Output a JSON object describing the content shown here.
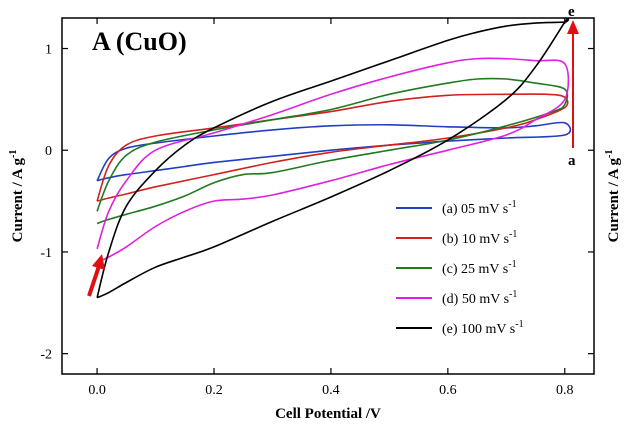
{
  "chart_data": {
    "type": "line",
    "title": "A (CuO)",
    "xlabel": "Cell Potential /V",
    "ylabel": "Current / A g",
    "ylabel_sup": "-1",
    "right_ylabel": "Current / A g",
    "right_ylabel_sup": "-1",
    "xlim": [
      -0.06,
      0.85
    ],
    "ylim": [
      -2.2,
      1.3
    ],
    "x_ticks": [
      0.0,
      0.2,
      0.4,
      0.6,
      0.8
    ],
    "x_tick_labels": [
      "0.0",
      "0.2",
      "0.4",
      "0.6",
      "0.8"
    ],
    "y_ticks": [
      -2,
      -1,
      0,
      1
    ],
    "y_tick_labels": [
      "-2",
      "-1",
      "0",
      "1"
    ],
    "grid": false,
    "legend_position": "lower-right",
    "annotations": {
      "top_label": "e",
      "bottom_label": "a"
    },
    "series": [
      {
        "name": "(a) 05 mV s",
        "name_sup": "-1",
        "color": "#1f3fbf",
        "x": [
          0.0,
          0.02,
          0.05,
          0.1,
          0.15,
          0.2,
          0.3,
          0.4,
          0.5,
          0.55,
          0.6,
          0.7,
          0.8,
          0.8,
          0.75,
          0.7,
          0.6,
          0.5,
          0.4,
          0.3,
          0.2,
          0.1,
          0.05,
          0.02,
          0.0
        ],
        "y": [
          -0.3,
          -0.27,
          -0.24,
          -0.2,
          -0.16,
          -0.12,
          -0.06,
          0.0,
          0.05,
          0.07,
          0.09,
          0.12,
          0.15,
          0.27,
          0.24,
          0.22,
          0.23,
          0.25,
          0.24,
          0.2,
          0.14,
          0.07,
          0.02,
          -0.08,
          -0.3
        ]
      },
      {
        "name": "(b) 10 mV s",
        "name_sup": "-1",
        "color": "#d42020",
        "x": [
          0.0,
          0.02,
          0.05,
          0.1,
          0.2,
          0.3,
          0.4,
          0.5,
          0.6,
          0.7,
          0.75,
          0.8,
          0.8,
          0.77,
          0.7,
          0.6,
          0.5,
          0.4,
          0.3,
          0.2,
          0.1,
          0.05,
          0.02,
          0.0
        ],
        "y": [
          -0.5,
          -0.47,
          -0.43,
          -0.36,
          -0.24,
          -0.12,
          -0.02,
          0.05,
          0.12,
          0.22,
          0.3,
          0.42,
          0.52,
          0.55,
          0.55,
          0.54,
          0.48,
          0.38,
          0.3,
          0.22,
          0.14,
          0.05,
          -0.15,
          -0.5
        ]
      },
      {
        "name": "(c) 25 mV s",
        "name_sup": "-1",
        "color": "#207a20",
        "x": [
          0.0,
          0.02,
          0.05,
          0.1,
          0.15,
          0.2,
          0.25,
          0.3,
          0.4,
          0.5,
          0.6,
          0.7,
          0.78,
          0.8,
          0.8,
          0.75,
          0.7,
          0.65,
          0.6,
          0.5,
          0.4,
          0.3,
          0.2,
          0.1,
          0.05,
          0.02,
          0.0
        ],
        "y": [
          -0.72,
          -0.68,
          -0.63,
          -0.55,
          -0.45,
          -0.32,
          -0.24,
          -0.22,
          -0.1,
          0.0,
          0.1,
          0.24,
          0.38,
          0.45,
          0.6,
          0.66,
          0.7,
          0.7,
          0.66,
          0.55,
          0.4,
          0.3,
          0.2,
          0.08,
          -0.05,
          -0.3,
          -0.6
        ]
      },
      {
        "name": "(d) 50 mV s",
        "name_sup": "-1",
        "color": "#e020e0",
        "x": [
          0.0,
          0.02,
          0.05,
          0.1,
          0.15,
          0.2,
          0.25,
          0.3,
          0.4,
          0.5,
          0.6,
          0.7,
          0.75,
          0.8,
          0.8,
          0.75,
          0.7,
          0.65,
          0.6,
          0.5,
          0.4,
          0.3,
          0.2,
          0.1,
          0.05,
          0.02,
          0.0
        ],
        "y": [
          -1.1,
          -1.05,
          -0.95,
          -0.75,
          -0.6,
          -0.5,
          -0.48,
          -0.44,
          -0.3,
          -0.14,
          0.0,
          0.15,
          0.3,
          0.5,
          0.85,
          0.88,
          0.9,
          0.9,
          0.86,
          0.72,
          0.55,
          0.35,
          0.17,
          0.0,
          -0.3,
          -0.6,
          -0.97
        ]
      },
      {
        "name": "(e) 100 mV s",
        "name_sup": "-1",
        "color": "#000000",
        "x": [
          0.0,
          0.02,
          0.05,
          0.1,
          0.15,
          0.2,
          0.3,
          0.4,
          0.5,
          0.6,
          0.7,
          0.75,
          0.8,
          0.8,
          0.75,
          0.7,
          0.65,
          0.6,
          0.5,
          0.4,
          0.3,
          0.2,
          0.15,
          0.1,
          0.05,
          0.02,
          0.0
        ],
        "y": [
          -1.45,
          -1.4,
          -1.3,
          -1.15,
          -1.05,
          -0.95,
          -0.7,
          -0.46,
          -0.2,
          0.1,
          0.5,
          0.82,
          1.26,
          1.26,
          1.25,
          1.22,
          1.16,
          1.08,
          0.88,
          0.68,
          0.48,
          0.22,
          0.05,
          -0.2,
          -0.55,
          -1.0,
          -1.45
        ]
      }
    ]
  }
}
